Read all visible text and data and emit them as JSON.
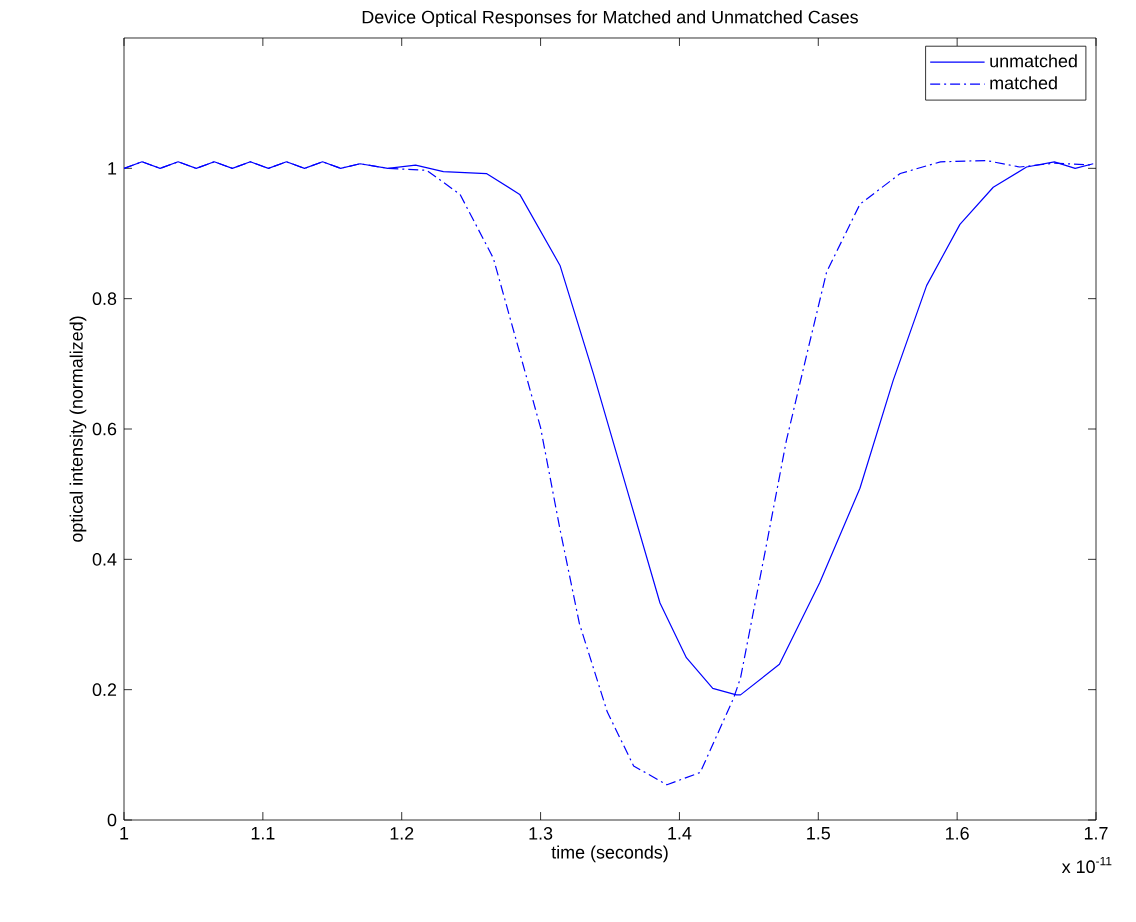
{
  "chart_data": {
    "type": "line",
    "title": "Device Optical Responses for Matched and Unmatched Cases",
    "xlabel": "time (seconds)",
    "ylabel": "optical intensity (normalized)",
    "annotations": [
      "x 10$^{-11}$"
    ],
    "xlim": [
      1,
      1.7
    ],
    "ylim": [
      0,
      1.2
    ],
    "xticks": [
      1,
      1.1,
      1.2,
      1.3,
      1.4,
      1.5,
      1.6,
      1.7
    ],
    "yticks": [
      0,
      0.2,
      0.4,
      0.6,
      0.8,
      1
    ],
    "grid": false,
    "legend": "top right",
    "marker": "none",
    "series": [
      {
        "name": "unmatched",
        "color": "#0000ff",
        "line_style": "solid",
        "x": [
          1,
          1.013,
          1.026,
          1.039,
          1.052,
          1.065,
          1.078,
          1.091,
          1.104,
          1.117,
          1.13,
          1.143,
          1.156,
          1.17,
          1.19,
          1.21,
          1.23,
          1.261,
          1.285,
          1.314,
          1.338,
          1.362,
          1.386,
          1.405,
          1.424,
          1.441,
          1.444,
          1.472,
          1.501,
          1.53,
          1.554,
          1.578,
          1.602,
          1.626,
          1.65,
          1.67,
          1.685,
          1.698
        ],
        "values": [
          1.0,
          1.01,
          1.0,
          1.01,
          1.0,
          1.01,
          1.0,
          1.01,
          1.0,
          1.01,
          1.0,
          1.01,
          1.0,
          1.007,
          1.0,
          1.005,
          0.995,
          0.992,
          0.96,
          0.851,
          0.685,
          0.509,
          0.333,
          0.249,
          0.202,
          0.192,
          0.192,
          0.239,
          0.364,
          0.509,
          0.675,
          0.82,
          0.914,
          0.971,
          1.002,
          1.01,
          1.0,
          1.007
        ]
      },
      {
        "name": "matched",
        "color": "#0000ff",
        "line_style": "dashed",
        "x": [
          1,
          1.013,
          1.026,
          1.039,
          1.052,
          1.065,
          1.078,
          1.091,
          1.104,
          1.117,
          1.13,
          1.143,
          1.156,
          1.17,
          1.19,
          1.218,
          1.242,
          1.266,
          1.285,
          1.3,
          1.314,
          1.328,
          1.348,
          1.367,
          1.391,
          1.415,
          1.439,
          1.444,
          1.463,
          1.477,
          1.492,
          1.506,
          1.53,
          1.559,
          1.588,
          1.621,
          1.645,
          1.67,
          1.698
        ],
        "values": [
          1.0,
          1.01,
          1.0,
          1.01,
          1.0,
          1.01,
          1.0,
          1.01,
          1.0,
          1.01,
          1.0,
          1.01,
          1.0,
          1.007,
          1.0,
          0.997,
          0.96,
          0.862,
          0.717,
          0.602,
          0.446,
          0.301,
          0.166,
          0.083,
          0.054,
          0.073,
          0.187,
          0.218,
          0.426,
          0.582,
          0.717,
          0.841,
          0.945,
          0.992,
          1.01,
          1.012,
          1.002,
          1.008,
          1.005
        ]
      }
    ]
  }
}
